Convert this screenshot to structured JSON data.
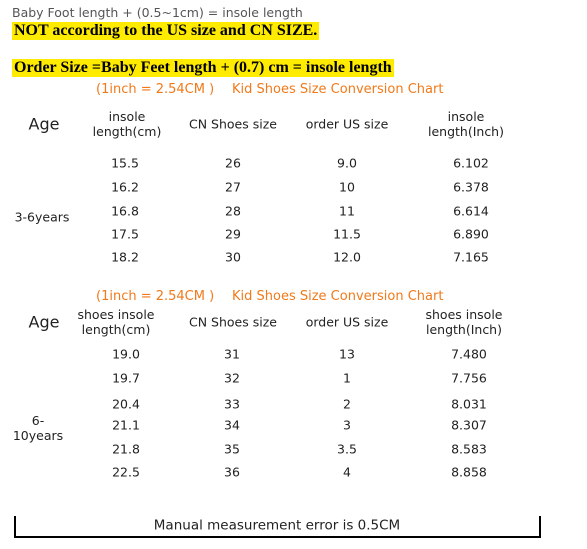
{
  "header": {
    "note": "Baby Foot length + (0.5~1cm) = insole length",
    "warning": "NOT according to the US size and CN SIZE.",
    "formula": "Order Size =Baby Feet length + (0.7) cm = insole length"
  },
  "tables": [
    {
      "conversion": "(1inch = 2.54CM )",
      "title": "Kid Shoes Size Conversion Chart",
      "columns": [
        "Age",
        "insole length(cm)",
        "CN Shoes size",
        "order US size",
        "insole length(Inch)"
      ],
      "age_group": "3-6years",
      "rows": [
        [
          "15.5",
          "26",
          "9.0",
          "6.102"
        ],
        [
          "16.2",
          "27",
          "10",
          "6.378"
        ],
        [
          "16.8",
          "28",
          "11",
          "6.614"
        ],
        [
          "17.5",
          "29",
          "11.5",
          "6.890"
        ],
        [
          "18.2",
          "30",
          "12.0",
          "7.165"
        ]
      ]
    },
    {
      "conversion": "(1inch = 2.54CM )",
      "title": "Kid Shoes Size Conversion Chart",
      "columns": [
        "Age",
        "shoes insole length(cm)",
        "CN Shoes size",
        "order US size",
        "shoes insole length(Inch)"
      ],
      "age_group": "6-10years",
      "rows": [
        [
          "19.0",
          "31",
          "13",
          "7.480"
        ],
        [
          "19.7",
          "32",
          "1",
          "7.756"
        ],
        [
          "20.4",
          "33",
          "2",
          "8.031"
        ],
        [
          "21.1",
          "34",
          "3",
          "8.307"
        ],
        [
          "21.8",
          "35",
          "3.5",
          "8.583"
        ],
        [
          "22.5",
          "36",
          "4",
          "8.858"
        ]
      ]
    }
  ],
  "footer": "Manual measurement error is 0.5CM"
}
